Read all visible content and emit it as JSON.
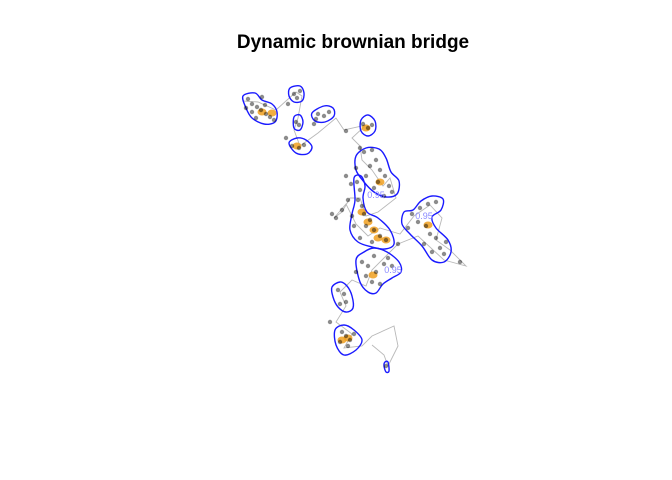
{
  "chart_data": {
    "type": "scatter",
    "title": "Dynamic brownian bridge",
    "xlabel": "",
    "ylabel": "",
    "axes": "none",
    "grid": false,
    "contour_levels": [
      "0.95"
    ],
    "colors": {
      "title": "#000000",
      "contour": "#1a1aff",
      "contour_label": "#8a8aff",
      "track": "#b8b8b8",
      "points": "#000000",
      "high_density": "#f0a020"
    },
    "core_areas": [
      [
        [
          243,
          96
        ],
        [
          255,
          93
        ],
        [
          262,
          100
        ],
        [
          272,
          104
        ],
        [
          277,
          112
        ],
        [
          275,
          122
        ],
        [
          264,
          124
        ],
        [
          252,
          118
        ],
        [
          246,
          108
        ]
      ],
      [
        [
          290,
          88
        ],
        [
          300,
          86
        ],
        [
          304,
          93
        ],
        [
          302,
          101
        ],
        [
          294,
          102
        ],
        [
          289,
          96
        ]
      ],
      [
        [
          294,
          117
        ],
        [
          300,
          115
        ],
        [
          303,
          122
        ],
        [
          300,
          130
        ],
        [
          294,
          128
        ]
      ],
      [
        [
          289,
          143
        ],
        [
          297,
          138
        ],
        [
          306,
          140
        ],
        [
          312,
          147
        ],
        [
          307,
          154
        ],
        [
          296,
          153
        ]
      ],
      [
        [
          312,
          113
        ],
        [
          324,
          106
        ],
        [
          333,
          108
        ],
        [
          334,
          116
        ],
        [
          325,
          122
        ],
        [
          315,
          121
        ]
      ],
      [
        [
          361,
          120
        ],
        [
          368,
          115
        ],
        [
          375,
          121
        ],
        [
          375,
          131
        ],
        [
          368,
          136
        ],
        [
          361,
          131
        ]
      ],
      [
        [
          356,
          156
        ],
        [
          366,
          148
        ],
        [
          379,
          149
        ],
        [
          386,
          158
        ],
        [
          391,
          172
        ],
        [
          399,
          181
        ],
        [
          397,
          194
        ],
        [
          386,
          197
        ],
        [
          374,
          192
        ],
        [
          364,
          182
        ],
        [
          356,
          170
        ]
      ],
      [
        [
          354,
          178
        ],
        [
          361,
          176
        ],
        [
          365,
          186
        ],
        [
          363,
          198
        ],
        [
          367,
          212
        ],
        [
          378,
          218
        ],
        [
          390,
          230
        ],
        [
          394,
          244
        ],
        [
          385,
          249
        ],
        [
          372,
          247
        ],
        [
          358,
          242
        ],
        [
          350,
          230
        ],
        [
          352,
          214
        ],
        [
          355,
          200
        ]
      ],
      [
        [
          404,
          212
        ],
        [
          413,
          210
        ],
        [
          421,
          201
        ],
        [
          432,
          196
        ],
        [
          443,
          199
        ],
        [
          441,
          210
        ],
        [
          432,
          217
        ],
        [
          436,
          228
        ],
        [
          448,
          240
        ],
        [
          451,
          252
        ],
        [
          444,
          262
        ],
        [
          432,
          260
        ],
        [
          422,
          246
        ],
        [
          410,
          234
        ],
        [
          402,
          224
        ]
      ],
      [
        [
          356,
          260
        ],
        [
          364,
          252
        ],
        [
          374,
          248
        ],
        [
          387,
          252
        ],
        [
          399,
          262
        ],
        [
          401,
          272
        ],
        [
          392,
          278
        ],
        [
          383,
          284
        ],
        [
          376,
          293
        ],
        [
          368,
          292
        ],
        [
          360,
          282
        ]
      ],
      [
        [
          332,
          287
        ],
        [
          340,
          282
        ],
        [
          347,
          286
        ],
        [
          352,
          296
        ],
        [
          353,
          308
        ],
        [
          346,
          312
        ],
        [
          338,
          307
        ],
        [
          333,
          297
        ]
      ],
      [
        [
          335,
          330
        ],
        [
          344,
          325
        ],
        [
          354,
          330
        ],
        [
          362,
          340
        ],
        [
          356,
          350
        ],
        [
          344,
          355
        ],
        [
          336,
          345
        ]
      ],
      [
        [
          385,
          362
        ],
        [
          388,
          362
        ],
        [
          389,
          371
        ],
        [
          386,
          372
        ],
        [
          384,
          366
        ]
      ]
    ],
    "contour_label_spots": [
      [
        424,
        219
      ],
      [
        376,
        198
      ],
      [
        393,
        273
      ]
    ],
    "density_hotspots": [
      [
        262,
        112
      ],
      [
        272,
        113
      ],
      [
        297,
        146
      ],
      [
        366,
        128
      ],
      [
        362,
        212
      ],
      [
        368,
        222
      ],
      [
        374,
        230
      ],
      [
        378,
        238
      ],
      [
        386,
        240
      ],
      [
        373,
        275
      ],
      [
        348,
        338
      ],
      [
        342,
        340
      ],
      [
        380,
        182
      ],
      [
        428,
        225
      ]
    ],
    "track": [
      [
        243,
        101
      ],
      [
        258,
        102
      ],
      [
        276,
        110
      ],
      [
        296,
        92
      ],
      [
        302,
        96
      ],
      [
        298,
        118
      ],
      [
        294,
        130
      ],
      [
        300,
        146
      ],
      [
        318,
        133
      ],
      [
        336,
        118
      ],
      [
        344,
        130
      ],
      [
        366,
        125
      ],
      [
        352,
        138
      ],
      [
        360,
        146
      ],
      [
        362,
        160
      ],
      [
        372,
        170
      ],
      [
        383,
        186
      ],
      [
        390,
        178
      ],
      [
        396,
        198
      ],
      [
        378,
        212
      ],
      [
        366,
        216
      ],
      [
        360,
        198
      ],
      [
        350,
        198
      ],
      [
        342,
        212
      ],
      [
        334,
        218
      ],
      [
        346,
        204
      ],
      [
        356,
        224
      ],
      [
        368,
        236
      ],
      [
        380,
        228
      ],
      [
        400,
        234
      ],
      [
        414,
        216
      ],
      [
        430,
        205
      ],
      [
        442,
        218
      ],
      [
        436,
        240
      ],
      [
        450,
        250
      ],
      [
        466,
        266
      ],
      [
        444,
        260
      ],
      [
        418,
        236
      ],
      [
        398,
        244
      ],
      [
        382,
        260
      ],
      [
        372,
        270
      ],
      [
        366,
        286
      ],
      [
        352,
        280
      ],
      [
        340,
        292
      ],
      [
        346,
        306
      ],
      [
        336,
        322
      ],
      [
        352,
        334
      ],
      [
        344,
        348
      ],
      [
        362,
        346
      ],
      [
        372,
        336
      ],
      [
        394,
        326
      ],
      [
        398,
        346
      ],
      [
        388,
        366
      ],
      [
        384,
        355
      ],
      [
        372,
        345
      ]
    ],
    "points": [
      [
        248,
        99
      ],
      [
        252,
        104
      ],
      [
        257,
        107
      ],
      [
        261,
        110
      ],
      [
        266,
        114
      ],
      [
        270,
        117
      ],
      [
        256,
        118
      ],
      [
        246,
        108
      ],
      [
        262,
        97
      ],
      [
        274,
        120
      ],
      [
        252,
        112
      ],
      [
        265,
        105
      ],
      [
        294,
        94
      ],
      [
        297,
        98
      ],
      [
        300,
        91
      ],
      [
        296,
        122
      ],
      [
        299,
        125
      ],
      [
        292,
        146
      ],
      [
        299,
        148
      ],
      [
        304,
        145
      ],
      [
        318,
        114
      ],
      [
        324,
        116
      ],
      [
        329,
        112
      ],
      [
        316,
        119
      ],
      [
        363,
        124
      ],
      [
        368,
        128
      ],
      [
        372,
        125
      ],
      [
        346,
        131
      ],
      [
        360,
        148
      ],
      [
        364,
        152
      ],
      [
        372,
        150
      ],
      [
        376,
        160
      ],
      [
        370,
        166
      ],
      [
        380,
        170
      ],
      [
        385,
        176
      ],
      [
        378,
        182
      ],
      [
        389,
        186
      ],
      [
        392,
        192
      ],
      [
        366,
        176
      ],
      [
        374,
        188
      ],
      [
        384,
        196
      ],
      [
        357,
        182
      ],
      [
        360,
        190
      ],
      [
        358,
        200
      ],
      [
        362,
        206
      ],
      [
        364,
        214
      ],
      [
        370,
        220
      ],
      [
        366,
        226
      ],
      [
        374,
        230
      ],
      [
        380,
        236
      ],
      [
        386,
        240
      ],
      [
        372,
        242
      ],
      [
        360,
        238
      ],
      [
        354,
        226
      ],
      [
        352,
        216
      ],
      [
        342,
        210
      ],
      [
        336,
        218
      ],
      [
        332,
        214
      ],
      [
        348,
        200
      ],
      [
        412,
        214
      ],
      [
        420,
        208
      ],
      [
        428,
        204
      ],
      [
        436,
        202
      ],
      [
        418,
        222
      ],
      [
        426,
        226
      ],
      [
        430,
        234
      ],
      [
        436,
        238
      ],
      [
        440,
        248
      ],
      [
        444,
        254
      ],
      [
        432,
        252
      ],
      [
        424,
        244
      ],
      [
        408,
        228
      ],
      [
        446,
        242
      ],
      [
        362,
        262
      ],
      [
        368,
        266
      ],
      [
        376,
        272
      ],
      [
        384,
        264
      ],
      [
        392,
        266
      ],
      [
        372,
        282
      ],
      [
        380,
        284
      ],
      [
        366,
        276
      ],
      [
        388,
        258
      ],
      [
        374,
        256
      ],
      [
        356,
        272
      ],
      [
        338,
        290
      ],
      [
        344,
        294
      ],
      [
        346,
        302
      ],
      [
        340,
        304
      ],
      [
        342,
        332
      ],
      [
        346,
        336
      ],
      [
        350,
        340
      ],
      [
        340,
        342
      ],
      [
        348,
        346
      ],
      [
        354,
        334
      ],
      [
        330,
        322
      ],
      [
        386,
        366
      ],
      [
        460,
        262
      ],
      [
        398,
        244
      ],
      [
        346,
        176
      ],
      [
        351,
        184
      ],
      [
        356,
        168
      ],
      [
        314,
        124
      ],
      [
        288,
        104
      ],
      [
        286,
        138
      ]
    ]
  }
}
